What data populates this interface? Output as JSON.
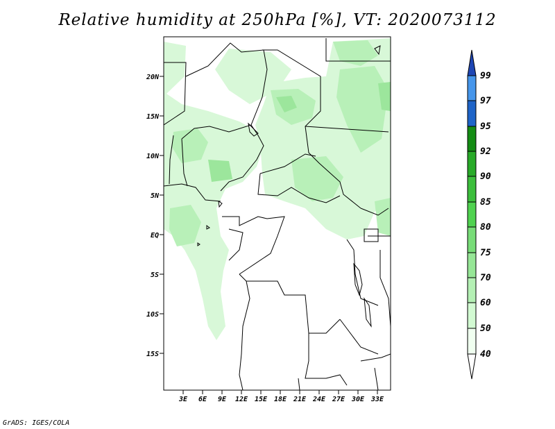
{
  "title": "Relative humidity at 250hPa [%], VT: 2020073112",
  "credit": "GrADS: IGES/COLA",
  "map": {
    "region": "Central Africa",
    "lon_range_deg_east": [
      0,
      35
    ],
    "lat_range_deg_north": [
      -20,
      25
    ],
    "lat_ticks": [
      "20N",
      "15N",
      "10N",
      "5N",
      "EQ",
      "5S",
      "10S",
      "15S"
    ],
    "lon_ticks": [
      "3E",
      "6E",
      "9E",
      "12E",
      "15E",
      "18E",
      "21E",
      "24E",
      "27E",
      "30E",
      "33E"
    ]
  },
  "colorbar": {
    "labels": [
      "40",
      "50",
      "60",
      "70",
      "75",
      "80",
      "85",
      "90",
      "92",
      "95",
      "97",
      "99"
    ],
    "colors": [
      "#f0fff0",
      "#d2fad2",
      "#b4f0b4",
      "#96e696",
      "#78dc78",
      "#50d250",
      "#3cbe3c",
      "#28aa28",
      "#148c14",
      "#1e64c8",
      "#4696eb",
      "#2864dc",
      "#1e46b4"
    ]
  }
}
